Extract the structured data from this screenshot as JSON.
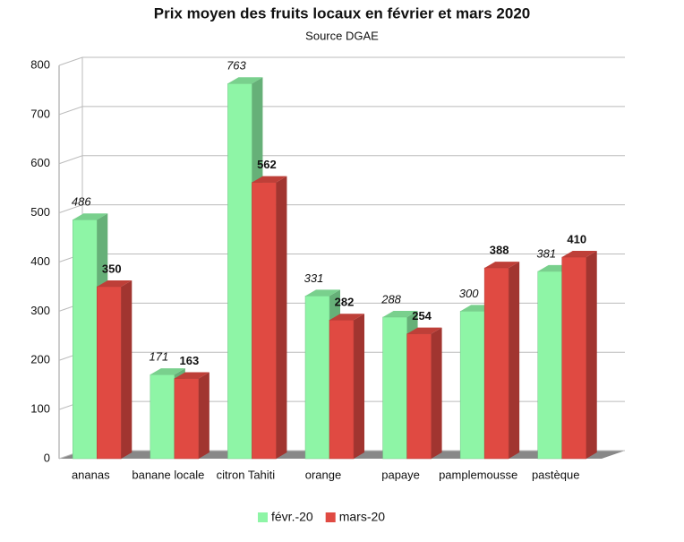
{
  "chart_data": {
    "type": "bar3d",
    "title": "Prix moyen des fruits locaux en février et mars 2020",
    "subtitle": "Source DGAE",
    "categories": [
      "ananas",
      "banane locale",
      "citron  Tahiti",
      "orange",
      "papaye",
      "pamplemousse",
      "pastèque"
    ],
    "series": [
      {
        "name": "févr.-20",
        "color": "#8ef5a6",
        "values": [
          486,
          171,
          763,
          331,
          288,
          300,
          381
        ]
      },
      {
        "name": "mars-20",
        "color": "#e04a42",
        "values": [
          350,
          163,
          562,
          282,
          254,
          388,
          410
        ]
      }
    ],
    "ylim": [
      0,
      800
    ],
    "yticks": [
      0,
      100,
      200,
      300,
      400,
      500,
      600,
      700,
      800
    ],
    "grid": true,
    "legend": "bottom"
  }
}
